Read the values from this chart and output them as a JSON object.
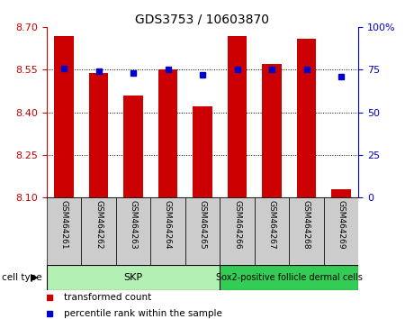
{
  "title": "GDS3753 / 10603870",
  "samples": [
    "GSM464261",
    "GSM464262",
    "GSM464263",
    "GSM464264",
    "GSM464265",
    "GSM464266",
    "GSM464267",
    "GSM464268",
    "GSM464269"
  ],
  "bar_values": [
    8.67,
    8.54,
    8.46,
    8.55,
    8.42,
    8.67,
    8.57,
    8.66,
    8.13
  ],
  "percentile_values": [
    76,
    74,
    73,
    75,
    72,
    75,
    75,
    75,
    71
  ],
  "bar_color": "#cc0000",
  "percentile_color": "#0000cc",
  "ylim_left": [
    8.1,
    8.7
  ],
  "ylim_right": [
    0,
    100
  ],
  "yticks_left": [
    8.1,
    8.25,
    8.4,
    8.55,
    8.7
  ],
  "yticks_right": [
    0,
    25,
    50,
    75,
    100
  ],
  "ytick_labels_right": [
    "0",
    "25",
    "50",
    "75",
    "100%"
  ],
  "grid_values": [
    8.25,
    8.4,
    8.55
  ],
  "skp_color": "#b3f0b3",
  "sox2_color": "#33cc55",
  "xlabel_bg": "#cccccc",
  "bar_width": 0.55,
  "background_color": "#ffffff",
  "left_tick_color": "#cc0000",
  "right_tick_color": "#0000cc",
  "title_fontsize": 10,
  "tick_fontsize": 8,
  "sample_fontsize": 6.5,
  "cell_fontsize": 8,
  "legend_fontsize": 7.5
}
